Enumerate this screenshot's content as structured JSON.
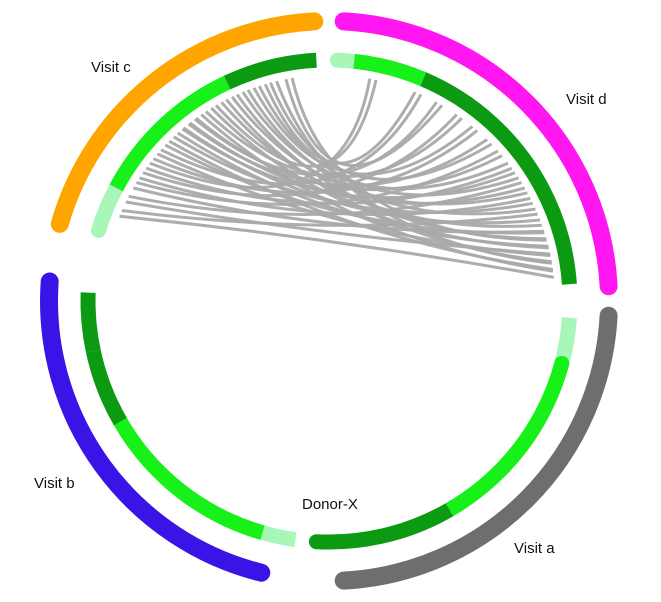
{
  "diagram": {
    "type": "circos_chord",
    "group_colors": {
      "Visit a": "#6e6e6e",
      "Visit b": "#3a14e6",
      "Visit c": "#ffa500",
      "Visit d": "#ff16f0"
    },
    "track_colors": {
      "dark": "#0b9a12",
      "bright": "#18f01a",
      "pale": "#a8f7b8"
    },
    "link_color": "#a9a9a9",
    "groups": [
      {
        "name": "Visit a",
        "label": "Visit a"
      },
      {
        "name": "Visit b",
        "label": "Visit b"
      },
      {
        "name": "Visit c",
        "label": "Visit c"
      },
      {
        "name": "Visit d",
        "label": "Visit d"
      }
    ],
    "subject_label": "Donor-X"
  }
}
